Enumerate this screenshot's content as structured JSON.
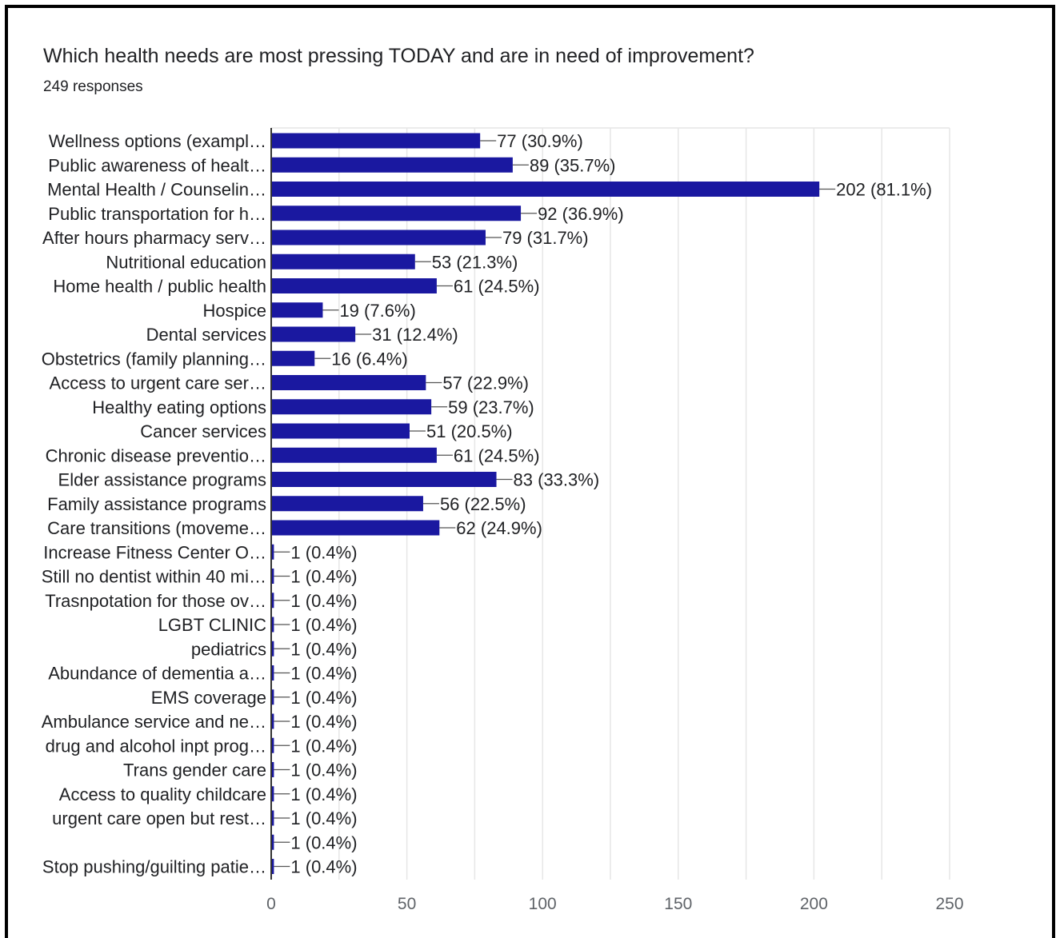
{
  "title": "Which health needs are most pressing TODAY and are in need of improvement?",
  "subtitle": "249 responses",
  "colors": {
    "bar": "#1a18a0",
    "grid": "#e6e6e6",
    "axis": "#333333",
    "frame": "#000000"
  },
  "chart_data": {
    "type": "bar",
    "orientation": "horizontal",
    "title": "Which health needs are most pressing TODAY and are in need of improvement?",
    "subtitle": "249 responses",
    "xlim": [
      0,
      250
    ],
    "xticks": [
      0,
      50,
      100,
      150,
      200,
      250
    ],
    "grid": true,
    "categories": [
      "Wellness options (exampl…",
      "Public awareness of healt…",
      "Mental Health / Counselin…",
      "Public transportation for h…",
      "After hours pharmacy serv…",
      "Nutritional education",
      "Home health / public health",
      "Hospice",
      "Dental services",
      "Obstetrics (family planning…",
      "Access to urgent care ser…",
      "Healthy eating options",
      "Cancer services",
      "Chronic disease preventio…",
      "Elder assistance programs",
      "Family assistance programs",
      "Care transitions (moveme…",
      "Increase Fitness Center O…",
      "Still no dentist within 40 mi…",
      "Trasnpotation for those ov…",
      "LGBT CLINIC",
      "pediatrics",
      "Abundance of dementia a…",
      "EMS coverage",
      "Ambulance service and ne…",
      "drug and alcohol inpt prog…",
      "Trans gender care",
      "Access to quality childcare",
      "urgent care open but rest…",
      "",
      "Stop pushing/guilting patie…"
    ],
    "values": [
      77,
      89,
      202,
      92,
      79,
      53,
      61,
      19,
      31,
      16,
      57,
      59,
      51,
      61,
      83,
      56,
      62,
      1,
      1,
      1,
      1,
      1,
      1,
      1,
      1,
      1,
      1,
      1,
      1,
      1,
      1
    ],
    "labels": [
      "77 (30.9%)",
      "89 (35.7%)",
      "202 (81.1%)",
      "92 (36.9%)",
      "79 (31.7%)",
      "53 (21.3%)",
      "61 (24.5%)",
      "19 (7.6%)",
      "31 (12.4%)",
      "16 (6.4%)",
      "57 (22.9%)",
      "59 (23.7%)",
      "51 (20.5%)",
      "61 (24.5%)",
      "83 (33.3%)",
      "56 (22.5%)",
      "62 (24.9%)",
      "1 (0.4%)",
      "1 (0.4%)",
      "1 (0.4%)",
      "1 (0.4%)",
      "1 (0.4%)",
      "1 (0.4%)",
      "1 (0.4%)",
      "1 (0.4%)",
      "1 (0.4%)",
      "1 (0.4%)",
      "1 (0.4%)",
      "1 (0.4%)",
      "1 (0.4%)",
      "1 (0.4%)"
    ]
  }
}
